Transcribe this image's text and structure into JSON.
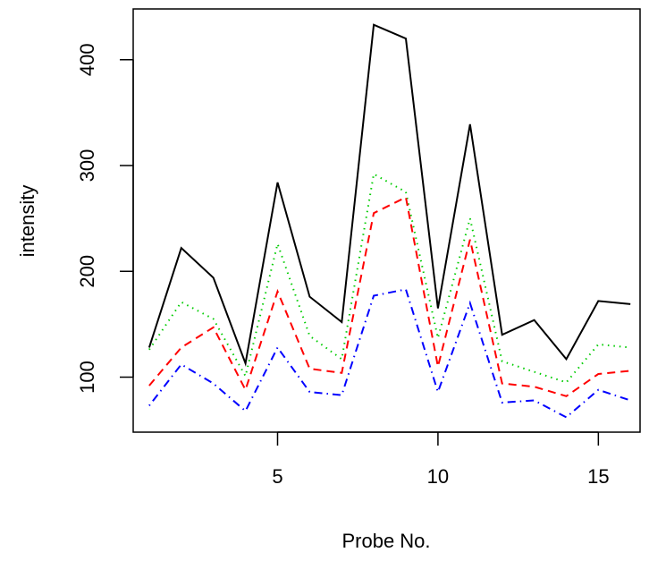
{
  "chart_data": {
    "type": "line",
    "title": "",
    "xlabel": "Probe No.",
    "ylabel": "intensity",
    "xlim": [
      0.5,
      16.3
    ],
    "ylim": [
      48,
      448
    ],
    "grid": false,
    "legend": "none",
    "x_ticks": [
      5,
      10,
      15
    ],
    "y_ticks": [
      100,
      200,
      300,
      400
    ],
    "x": [
      1,
      2,
      3,
      4,
      5,
      6,
      7,
      8,
      9,
      10,
      11,
      12,
      13,
      14,
      15,
      16
    ],
    "series": [
      {
        "color": "#000000",
        "dash": "solid",
        "values": [
          128,
          222,
          194,
          113,
          284,
          176,
          152,
          433,
          420,
          165,
          339,
          140,
          154,
          117,
          172,
          169
        ]
      },
      {
        "color": "#00cc00",
        "dash": "dotted",
        "values": [
          126,
          171,
          155,
          101,
          226,
          139,
          117,
          292,
          275,
          137,
          250,
          115,
          105,
          95,
          131,
          128
        ]
      },
      {
        "color": "#ff0000",
        "dash": "dashed",
        "values": [
          92,
          128,
          147,
          88,
          181,
          108,
          104,
          255,
          270,
          110,
          230,
          94,
          91,
          82,
          103,
          106
        ]
      },
      {
        "color": "#0000ff",
        "dash": "dotdash",
        "values": [
          73,
          112,
          94,
          68,
          128,
          86,
          83,
          177,
          183,
          86,
          170,
          76,
          78,
          62,
          88,
          78
        ]
      }
    ]
  }
}
